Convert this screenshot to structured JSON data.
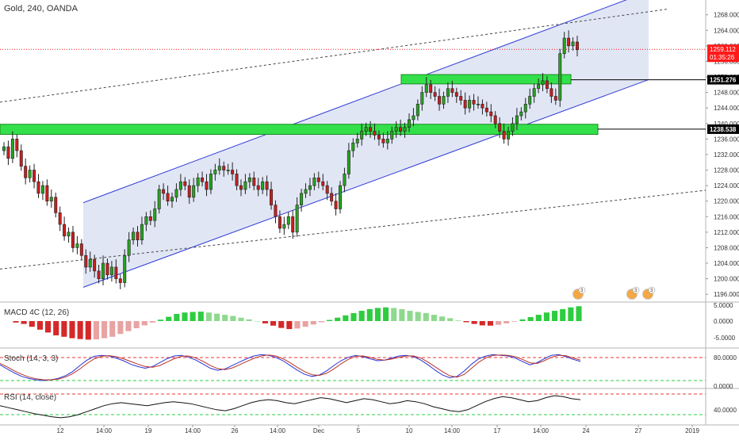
{
  "header": {
    "symbol_title": "Gold, 240, OANDA"
  },
  "price_pane": {
    "y_ticks": [
      1196,
      1200,
      1204,
      1208,
      1212,
      1216,
      1220,
      1224,
      1228,
      1232,
      1236,
      1240,
      1244,
      1248,
      1252,
      1256,
      1260,
      1264,
      1268
    ],
    "y_tick_labels": [
      "1196.000",
      "1200.000",
      "1204.000",
      "1208.000",
      "1212.000",
      "1216.000",
      "1220.000",
      "1224.000",
      "1228.000",
      "1232.000",
      "1236.000",
      "1240.000",
      "1244.000",
      "1248.000",
      "1252.000",
      "1256.000",
      "1260.000",
      "1264.000",
      "1268.000"
    ],
    "current_price": {
      "value": 1259.112,
      "label": "1259.112",
      "countdown": "01:35:26",
      "color": "#ff1a1a"
    },
    "level_labels": [
      {
        "value": 1251.276,
        "label": "1251.276"
      },
      {
        "value": 1238.538,
        "label": "1238.538"
      }
    ],
    "zones": [
      {
        "from": 1237.2,
        "to": 1239.8,
        "color": "#33e04a"
      },
      {
        "from": 1250.2,
        "to": 1252.6,
        "color": "#33e04a"
      }
    ],
    "channel": {
      "lower_start": 1197.8,
      "lower_end": 1251.3,
      "upper_start": 1219.6,
      "upper_end": 1274.0,
      "color": "#2e3bd6"
    },
    "event_badges": [
      "3",
      "3",
      "3"
    ],
    "up_color": "#26a41e",
    "down_color": "#c81e1e"
  },
  "macd_pane": {
    "label": "MACD 4C (12, 26)",
    "y_tick_labels": [
      "5.0000",
      "0.0000",
      "-5.0000"
    ],
    "y_ticks": [
      5,
      0,
      -5
    ]
  },
  "stoch_pane": {
    "label": "Stoch (14, 3, 3)",
    "y_tick_labels": [
      "80.0000",
      "0.0000"
    ],
    "y_ticks": [
      80,
      0
    ]
  },
  "rsi_pane": {
    "label": "RSI (14, close)",
    "y_tick_labels": [
      "40.0000"
    ],
    "y_ticks": [
      40
    ]
  },
  "time_axis": {
    "labels": [
      "12",
      "14:00",
      "19",
      "14:00",
      "26",
      "14:00",
      "Dec",
      "5",
      "10",
      "14:00",
      "17",
      "14:00",
      "24",
      "27",
      "2019"
    ]
  },
  "chart_data": {
    "type": "candlestick",
    "title": "Gold, 240, OANDA",
    "ylim": [
      1194,
      1271
    ],
    "closes": [
      1234,
      1231,
      1236,
      1233,
      1229,
      1226,
      1228,
      1225,
      1222,
      1224,
      1220,
      1221,
      1217,
      1214,
      1211,
      1212,
      1208,
      1209,
      1206,
      1203,
      1205,
      1202,
      1200,
      1204,
      1201,
      1203,
      1200,
      1199,
      1206,
      1210,
      1212,
      1210,
      1214,
      1216,
      1215,
      1218,
      1223,
      1222,
      1220,
      1221,
      1223,
      1225,
      1224,
      1221,
      1224,
      1226,
      1225,
      1223,
      1227,
      1228,
      1229,
      1228,
      1228,
      1227,
      1224,
      1223,
      1225,
      1226,
      1224,
      1223,
      1225,
      1223,
      1219,
      1216,
      1213,
      1214,
      1216,
      1212,
      1219,
      1222,
      1223,
      1224,
      1226,
      1225,
      1224,
      1222,
      1220,
      1218,
      1224,
      1227,
      1233,
      1235,
      1236,
      1238,
      1239,
      1238,
      1237,
      1236,
      1235,
      1236,
      1238,
      1239,
      1238,
      1239,
      1241,
      1242,
      1245,
      1248,
      1250,
      1248,
      1247,
      1245,
      1247,
      1249,
      1248,
      1247,
      1246,
      1244,
      1246,
      1245,
      1245,
      1244,
      1243,
      1242,
      1240,
      1238,
      1236,
      1238,
      1240,
      1242,
      1243,
      1245,
      1247,
      1249,
      1250,
      1251,
      1249,
      1247,
      1246,
      1258,
      1262,
      1260,
      1261,
      1259
    ],
    "macd_hist": [
      -0.5,
      -1.0,
      -2.0,
      -3.0,
      -4.0,
      -5.0,
      -5.5,
      -6.0,
      -6.3,
      -6.5,
      -6.4,
      -6.0,
      -5.5,
      -4.5,
      -3.5,
      -2.5,
      -1.5,
      -0.5,
      0.5,
      1.5,
      2.5,
      3.0,
      3.2,
      3.3,
      3.0,
      2.6,
      2.2,
      1.8,
      1.2,
      0.6,
      0.0,
      -0.8,
      -1.6,
      -2.4,
      -2.8,
      -2.6,
      -2.0,
      -1.2,
      -0.4,
      0.4,
      1.2,
      2.0,
      2.8,
      3.6,
      4.2,
      4.6,
      4.8,
      4.6,
      4.2,
      3.6,
      3.2,
      2.8,
      2.2,
      1.6,
      1.0,
      0.2,
      -0.4,
      -1.0,
      -1.5,
      -1.6,
      -1.3,
      -0.8,
      -0.2,
      0.6,
      1.4,
      2.2,
      3.0,
      3.6,
      4.2,
      4.8,
      5.2
    ],
    "stoch_k": [
      60,
      48,
      36,
      26,
      20,
      16,
      14,
      16,
      20,
      28,
      40,
      58,
      74,
      85,
      88,
      86,
      80,
      72,
      62,
      55,
      50,
      55,
      66,
      78,
      86,
      88,
      82,
      74,
      62,
      50,
      44,
      48,
      58,
      68,
      78,
      86,
      90,
      88,
      82,
      72,
      58,
      44,
      32,
      26,
      30,
      42,
      58,
      72,
      82,
      88,
      84,
      78,
      72,
      74,
      80,
      86,
      88,
      84,
      74,
      60,
      44,
      30,
      22,
      26,
      42,
      62,
      78,
      86,
      90,
      88,
      86,
      80,
      70,
      60,
      66,
      78,
      88,
      90,
      84,
      76,
      70
    ],
    "stoch_d": [
      64,
      54,
      42,
      32,
      24,
      19,
      16,
      16,
      18,
      24,
      34,
      48,
      64,
      78,
      85,
      87,
      84,
      78,
      70,
      62,
      55,
      53,
      58,
      68,
      78,
      85,
      86,
      80,
      70,
      58,
      49,
      46,
      51,
      60,
      70,
      79,
      86,
      89,
      86,
      78,
      66,
      52,
      40,
      31,
      29,
      35,
      48,
      63,
      76,
      85,
      86,
      82,
      76,
      74,
      77,
      82,
      86,
      86,
      80,
      68,
      54,
      40,
      28,
      24,
      32,
      50,
      68,
      81,
      88,
      89,
      88,
      84,
      76,
      66,
      64,
      72,
      82,
      88,
      87,
      80,
      74
    ],
    "rsi": [
      52,
      48,
      44,
      40,
      36,
      33,
      30,
      28,
      30,
      34,
      40,
      46,
      52,
      56,
      58,
      56,
      54,
      52,
      55,
      58,
      60,
      58,
      56,
      52,
      48,
      44,
      42,
      46,
      52,
      58,
      62,
      64,
      62,
      58,
      56,
      60,
      64,
      68,
      66,
      62,
      58,
      62,
      66,
      64,
      60,
      56,
      58,
      62,
      60,
      56,
      50,
      46,
      42,
      40,
      44,
      52,
      60,
      66,
      70,
      68,
      64,
      60,
      62,
      68,
      72,
      70,
      66,
      64
    ]
  }
}
